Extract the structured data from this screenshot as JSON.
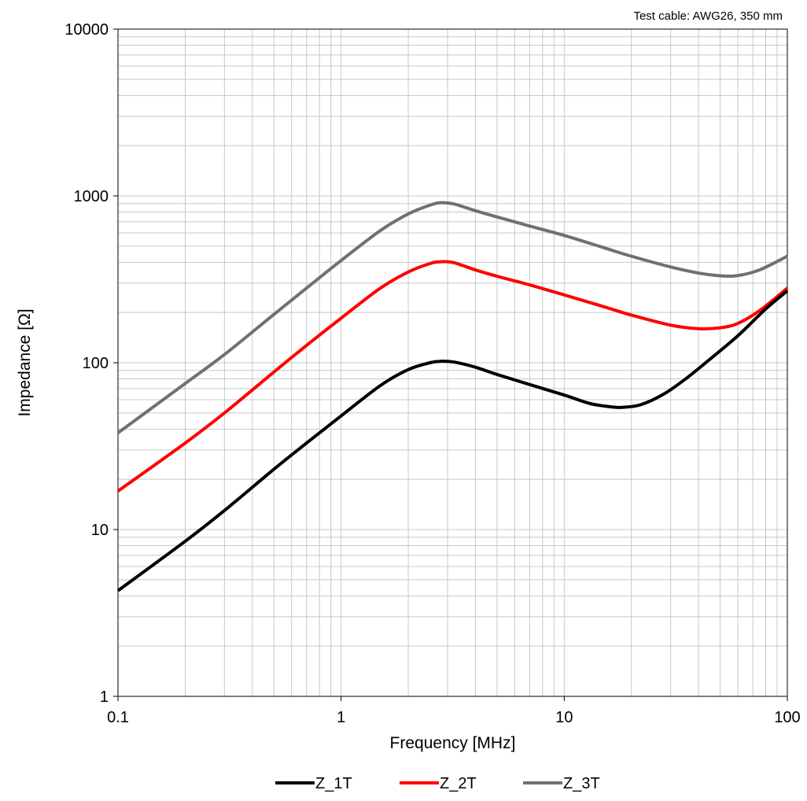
{
  "chart_data": {
    "type": "line",
    "title": "",
    "annotation": "Test cable: AWG26, 350 mm",
    "xlabel": "Frequency [MHz]",
    "ylabel": "Impedance [Ω]",
    "x_scale": "log",
    "y_scale": "log",
    "xlim": [
      0.1,
      100
    ],
    "ylim": [
      1,
      10000
    ],
    "x_ticks": [
      {
        "value": 0.1,
        "label": "0.1"
      },
      {
        "value": 1,
        "label": "1"
      },
      {
        "value": 10,
        "label": "10"
      },
      {
        "value": 100,
        "label": "100"
      }
    ],
    "y_ticks": [
      {
        "value": 1,
        "label": "1"
      },
      {
        "value": 10,
        "label": "10"
      },
      {
        "value": 100,
        "label": "100"
      },
      {
        "value": 1000,
        "label": "1000"
      },
      {
        "value": 10000,
        "label": "10000"
      }
    ],
    "grid": true,
    "grid_minor": true,
    "legend_position": "bottom",
    "series": [
      {
        "name": "Z_1T",
        "color": "#000000",
        "points": [
          [
            0.1,
            4.3
          ],
          [
            0.2,
            8.5
          ],
          [
            0.3,
            13
          ],
          [
            0.5,
            23
          ],
          [
            0.7,
            33
          ],
          [
            1.0,
            48
          ],
          [
            1.5,
            73
          ],
          [
            2.0,
            91
          ],
          [
            2.5,
            100
          ],
          [
            2.8,
            102
          ],
          [
            3.2,
            101
          ],
          [
            4.0,
            94
          ],
          [
            5.0,
            85
          ],
          [
            7.0,
            74
          ],
          [
            10,
            64
          ],
          [
            13,
            57
          ],
          [
            16,
            54.5
          ],
          [
            18,
            54
          ],
          [
            22,
            56
          ],
          [
            28,
            65
          ],
          [
            35,
            80
          ],
          [
            45,
            105
          ],
          [
            60,
            145
          ],
          [
            80,
            210
          ],
          [
            100,
            270
          ]
        ]
      },
      {
        "name": "Z_2T",
        "color": "#ff0000",
        "points": [
          [
            0.1,
            17
          ],
          [
            0.2,
            33
          ],
          [
            0.3,
            50
          ],
          [
            0.5,
            88
          ],
          [
            0.7,
            127
          ],
          [
            1.0,
            185
          ],
          [
            1.5,
            280
          ],
          [
            2.0,
            350
          ],
          [
            2.5,
            393
          ],
          [
            2.8,
            403
          ],
          [
            3.2,
            398
          ],
          [
            4.0,
            360
          ],
          [
            5.0,
            330
          ],
          [
            7.0,
            293
          ],
          [
            10,
            255
          ],
          [
            15,
            217
          ],
          [
            20,
            193
          ],
          [
            30,
            168
          ],
          [
            40,
            160
          ],
          [
            50,
            162
          ],
          [
            60,
            172
          ],
          [
            75,
            205
          ],
          [
            100,
            280
          ]
        ]
      },
      {
        "name": "Z_3T",
        "color": "#707070",
        "points": [
          [
            0.1,
            38
          ],
          [
            0.2,
            75
          ],
          [
            0.3,
            112
          ],
          [
            0.5,
            195
          ],
          [
            0.7,
            280
          ],
          [
            1.0,
            410
          ],
          [
            1.5,
            620
          ],
          [
            2.0,
            780
          ],
          [
            2.5,
            880
          ],
          [
            2.8,
            910
          ],
          [
            3.2,
            895
          ],
          [
            4.0,
            815
          ],
          [
            5.0,
            748
          ],
          [
            7.0,
            660
          ],
          [
            10,
            580
          ],
          [
            15,
            490
          ],
          [
            20,
            435
          ],
          [
            30,
            375
          ],
          [
            40,
            345
          ],
          [
            50,
            332
          ],
          [
            60,
            333
          ],
          [
            75,
            360
          ],
          [
            100,
            435
          ]
        ]
      }
    ]
  }
}
